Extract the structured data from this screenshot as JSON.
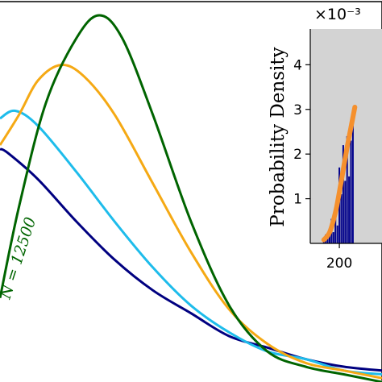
{
  "chart_data": [
    {
      "type": "line",
      "annotation": "N = 12500",
      "annotation_color": "#006400",
      "series": [
        {
          "color": "#000080",
          "x": [
            0.0,
            0.02,
            0.1,
            0.2,
            0.3,
            0.4,
            0.5,
            0.6,
            0.7,
            0.8,
            0.9,
            1.0
          ],
          "y": [
            0.61,
            0.6,
            0.53,
            0.42,
            0.32,
            0.24,
            0.18,
            0.12,
            0.09,
            0.06,
            0.04,
            0.03
          ]
        },
        {
          "color": "#1EBCEB",
          "x": [
            0.0,
            0.04,
            0.1,
            0.2,
            0.3,
            0.4,
            0.5,
            0.6,
            0.7,
            0.8,
            0.9,
            1.0
          ],
          "y": [
            0.69,
            0.71,
            0.67,
            0.55,
            0.42,
            0.3,
            0.2,
            0.13,
            0.08,
            0.06,
            0.03,
            0.02
          ]
        },
        {
          "color": "#F5A914",
          "x": [
            0.0,
            0.05,
            0.1,
            0.16,
            0.22,
            0.3,
            0.4,
            0.5,
            0.6,
            0.7,
            0.8,
            0.9,
            1.0
          ],
          "y": [
            0.62,
            0.7,
            0.79,
            0.83,
            0.8,
            0.7,
            0.52,
            0.34,
            0.19,
            0.1,
            0.05,
            0.03,
            0.01
          ]
        },
        {
          "color": "#006400",
          "x": [
            0.0,
            0.05,
            0.12,
            0.2,
            0.26,
            0.32,
            0.4,
            0.5,
            0.6,
            0.7,
            0.8,
            0.9,
            1.0
          ],
          "y": [
            0.22,
            0.46,
            0.73,
            0.9,
            0.96,
            0.9,
            0.7,
            0.42,
            0.2,
            0.08,
            0.04,
            0.02,
            0.0
          ]
        }
      ]
    },
    {
      "type": "bar",
      "ylabel": "Probability Density",
      "y_multiplier": "×10⁻³",
      "x_tick_labels": [
        "200"
      ],
      "x_ticks": [
        200
      ],
      "y_tick_labels": [
        "1",
        "2",
        "3",
        "4"
      ],
      "y_ticks": [
        1,
        2,
        3,
        4
      ],
      "xlim": [
        170,
        244
      ],
      "ylim": [
        0,
        4.8
      ],
      "bar_color": "#00008B",
      "background": "#D3D3D3",
      "fit_color": "#F5902D",
      "bars": [
        {
          "x": 184,
          "y": 0.1
        },
        {
          "x": 186,
          "y": 0.2
        },
        {
          "x": 188,
          "y": 0.15
        },
        {
          "x": 190,
          "y": 0.3
        },
        {
          "x": 192,
          "y": 0.55
        },
        {
          "x": 194,
          "y": 0.25
        },
        {
          "x": 196,
          "y": 0.6
        },
        {
          "x": 198,
          "y": 0.4
        },
        {
          "x": 200,
          "y": 1.7
        },
        {
          "x": 202,
          "y": 1.1
        },
        {
          "x": 204,
          "y": 2.2
        },
        {
          "x": 206,
          "y": 1.4
        },
        {
          "x": 208,
          "y": 2.4
        },
        {
          "x": 210,
          "y": 1.5
        },
        {
          "x": 212,
          "y": 2.3
        },
        {
          "x": 214,
          "y": 2.85
        }
      ],
      "fit": {
        "x": [
          184,
          190,
          196,
          200,
          204,
          208,
          212,
          216
        ],
        "y": [
          0.08,
          0.25,
          0.7,
          1.15,
          1.65,
          2.15,
          2.6,
          3.05
        ]
      }
    }
  ]
}
